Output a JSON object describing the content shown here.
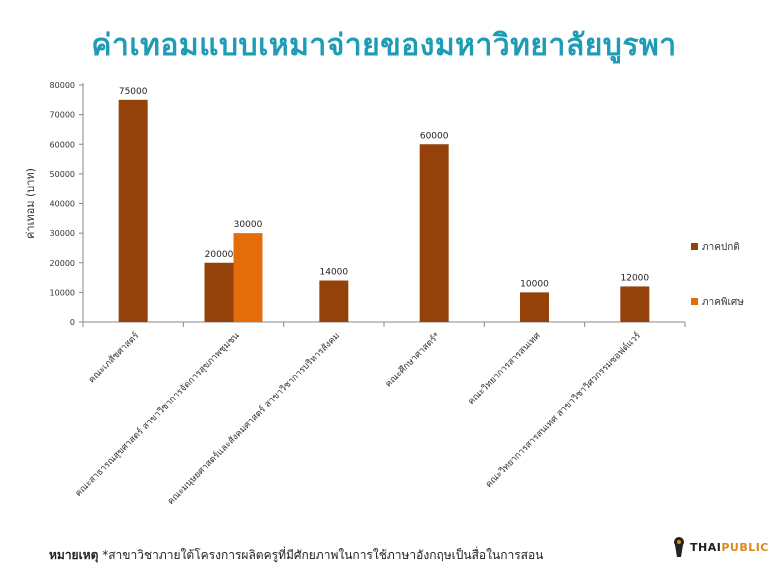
{
  "title": "ค่าเทอมแบบเหมาจ่ายของมหาวิทยาลัยบูรพา",
  "footnote": {
    "label": "หมายเหตุ",
    "text": "*สาขาวิชาภายใต้โครงการผลิตครูที่มีศักยภาพในการใช้ภาษาอังกฤษเป็นสื่อในการสอน"
  },
  "logo": {
    "part1": "THAI",
    "part2": "PUBLICA"
  },
  "colors": {
    "regular": "#944209",
    "special": "#e46c0a",
    "title": "#1e9bb5"
  },
  "chart_data": {
    "type": "bar",
    "categories": [
      "คณะเภสัชศาสตร์",
      "คณะสาธารณสุขศาสตร์ สาขาวิชาการจัดการสุขภาพชุมชน",
      "คณะมนุษยศาสตร์และสังคมศาสตร์ สาขาวิชาการบริหารสังคม",
      "คณะศึกษาศาสตร์*",
      "คณะวิทยาการสารสนเทศ",
      "คณะวิทยาการสารสนเทศ สาขาวิชาวิศวกรรมซอฟต์แวร์"
    ],
    "series": [
      {
        "name": "ภาคปกติ",
        "values": [
          75000,
          20000,
          14000,
          60000,
          10000,
          12000
        ]
      },
      {
        "name": "ภาคพิเศษ",
        "values": [
          null,
          30000,
          null,
          null,
          null,
          null
        ]
      }
    ],
    "ylabel": "ค่าเทอม (บาท)",
    "ylim": [
      0,
      80000
    ],
    "yticks": [
      0,
      10000,
      20000,
      30000,
      40000,
      50000,
      60000,
      70000,
      80000
    ],
    "grid": false,
    "legend": "right"
  }
}
